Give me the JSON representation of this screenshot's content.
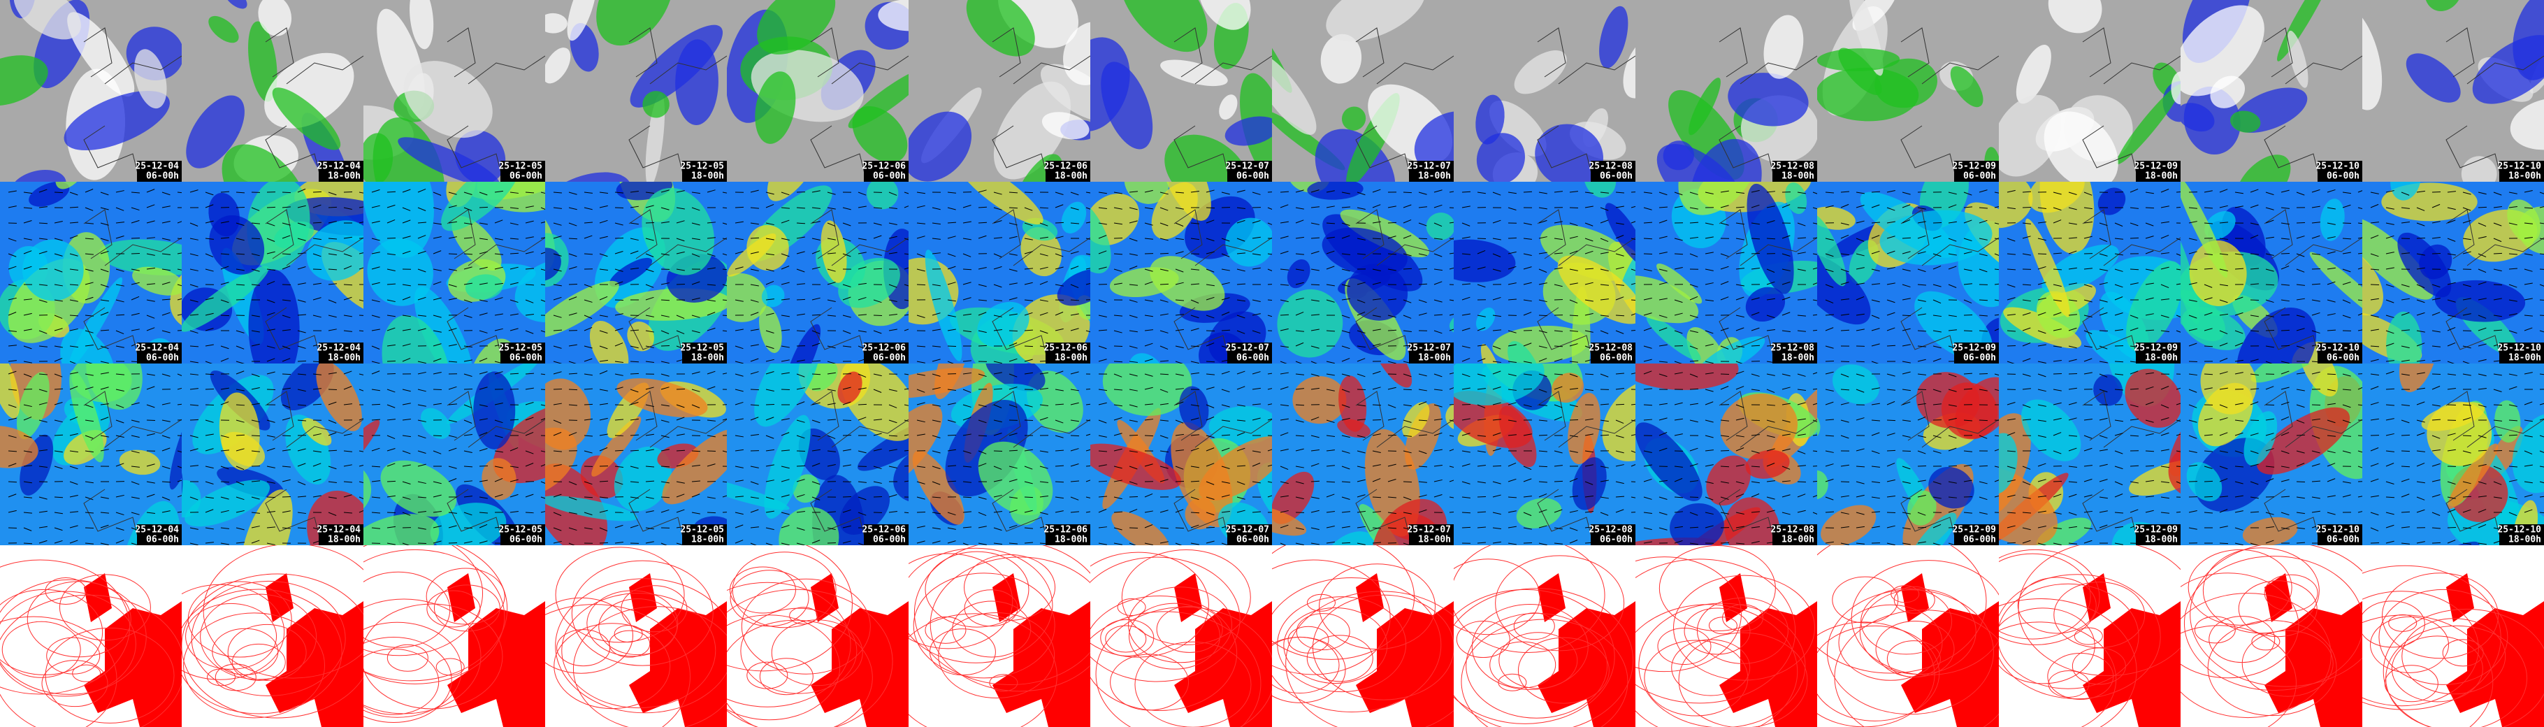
{
  "panels": {
    "columns": [
      {
        "date": "25-12-04",
        "time": "06-00h"
      },
      {
        "date": "25-12-04",
        "time": "18-00h"
      },
      {
        "date": "25-12-05",
        "time": "06-00h"
      },
      {
        "date": "25-12-05",
        "time": "18-00h"
      },
      {
        "date": "25-12-06",
        "time": "06-00h"
      },
      {
        "date": "25-12-06",
        "time": "18-00h"
      },
      {
        "date": "25-12-07",
        "time": "06-00h"
      },
      {
        "date": "25-12-07",
        "time": "18-00h"
      },
      {
        "date": "25-12-08",
        "time": "06-00h"
      },
      {
        "date": "25-12-08",
        "time": "18-00h"
      },
      {
        "date": "25-12-09",
        "time": "06-00h"
      },
      {
        "date": "25-12-09",
        "time": "18-00h"
      },
      {
        "date": "25-12-10",
        "time": "06-00h"
      },
      {
        "date": "25-12-10",
        "time": "18-00h"
      }
    ]
  }
}
